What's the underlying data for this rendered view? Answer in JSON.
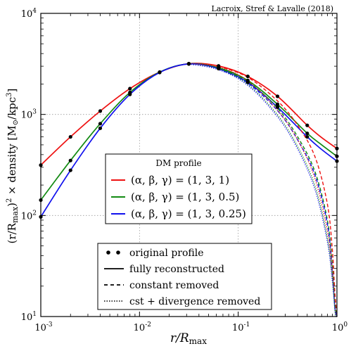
{
  "chart_data": {
    "type": "line",
    "annotation": "Lacroix, Stref & Lavalle (2018)",
    "xlabel": "r/R_max",
    "ylabel": "(r/R_max)² × density [M⊙/kpc³]",
    "xscale": "log",
    "yscale": "log",
    "xlim": [
      0.001,
      1
    ],
    "ylim": [
      10,
      10000
    ],
    "grid": true,
    "x_ticks": [
      {
        "value": 0.001,
        "label": "10",
        "exp": "-3"
      },
      {
        "value": 0.01,
        "label": "10",
        "exp": "-2"
      },
      {
        "value": 0.1,
        "label": "10",
        "exp": "-1"
      },
      {
        "value": 1,
        "label": "10",
        "exp": "0"
      }
    ],
    "y_ticks": [
      {
        "value": 10,
        "label": "10",
        "exp": "1"
      },
      {
        "value": 100,
        "label": "10",
        "exp": "2"
      },
      {
        "value": 1000,
        "label": "10",
        "exp": "3"
      },
      {
        "value": 10000,
        "label": "10",
        "exp": "4"
      }
    ],
    "colors": {
      "red": "#ee1111",
      "green": "#128a12",
      "blue": "#1111ee"
    },
    "profile_legend": {
      "title": "DM profile",
      "entries": [
        {
          "label": "(α, β, γ) = (1, 3, 1)",
          "color": "#ee1111"
        },
        {
          "label": "(α, β, γ) = (1, 3, 0.5)",
          "color": "#128a12"
        },
        {
          "label": "(α, β, γ) = (1, 3, 0.25)",
          "color": "#1111ee"
        }
      ]
    },
    "style_legend": [
      {
        "label": "original profile",
        "style": "dots"
      },
      {
        "label": "fully reconstructed",
        "style": "solid"
      },
      {
        "label": "constant removed",
        "style": "dashed"
      },
      {
        "label": "cst + divergence removed",
        "style": "dotted"
      }
    ],
    "series": [
      {
        "color": "#ee1111",
        "style": "solid",
        "x": [
          0.001,
          0.002,
          0.004,
          0.008,
          0.016,
          0.0316,
          0.0632,
          0.125,
          0.25,
          0.5,
          0.7,
          1.0
        ],
        "y": [
          315,
          600,
          1080,
          1800,
          2620,
          3180,
          3020,
          2380,
          1510,
          780,
          590,
          460
        ]
      },
      {
        "color": "#128a12",
        "style": "solid",
        "x": [
          0.001,
          0.002,
          0.004,
          0.008,
          0.016,
          0.0316,
          0.0632,
          0.125,
          0.25,
          0.5,
          0.7,
          1.0
        ],
        "y": [
          142,
          350,
          810,
          1650,
          2620,
          3170,
          2900,
          2170,
          1260,
          650,
          500,
          385
        ]
      },
      {
        "color": "#1111ee",
        "style": "solid",
        "x": [
          0.001,
          0.002,
          0.004,
          0.008,
          0.016,
          0.0316,
          0.0632,
          0.125,
          0.25,
          0.5,
          0.7,
          1.0
        ],
        "y": [
          97,
          280,
          730,
          1580,
          2600,
          3160,
          2840,
          2080,
          1180,
          600,
          450,
          345
        ]
      },
      {
        "color": "#ee1111",
        "style": "dashed",
        "x": [
          0.0632,
          0.125,
          0.25,
          0.4,
          0.6,
          0.8,
          0.9,
          0.95,
          1.0
        ],
        "y": [
          3010,
          2330,
          1360,
          780,
          380,
          130,
          45,
          18,
          10
        ]
      },
      {
        "color": "#128a12",
        "style": "dashed",
        "x": [
          0.0632,
          0.125,
          0.25,
          0.4,
          0.6,
          0.8,
          0.9,
          0.95,
          1.0
        ],
        "y": [
          2890,
          2120,
          1150,
          600,
          270,
          90,
          32,
          14,
          10
        ]
      },
      {
        "color": "#1111ee",
        "style": "dashed",
        "x": [
          0.0632,
          0.125,
          0.25,
          0.4,
          0.6,
          0.8,
          0.9,
          0.95,
          1.0
        ],
        "y": [
          2830,
          2040,
          1090,
          560,
          250,
          82,
          28,
          13,
          10
        ]
      },
      {
        "color": "#ee1111",
        "style": "dotted",
        "x": [
          0.0316,
          0.0632,
          0.125,
          0.25,
          0.4,
          0.6,
          0.8,
          0.9,
          0.96,
          1.0
        ],
        "y": [
          3170,
          2950,
          2150,
          1100,
          560,
          230,
          70,
          28,
          12,
          10
        ]
      },
      {
        "color": "#128a12",
        "style": "dotted",
        "x": [
          0.0316,
          0.0632,
          0.125,
          0.25,
          0.4,
          0.6,
          0.8,
          0.9,
          0.96,
          1.0
        ],
        "y": [
          3160,
          2830,
          1990,
          990,
          480,
          195,
          60,
          24,
          11,
          10
        ]
      },
      {
        "color": "#1111ee",
        "style": "dotted",
        "x": [
          0.0316,
          0.0632,
          0.125,
          0.25,
          0.4,
          0.6,
          0.8,
          0.9,
          0.96,
          1.0
        ],
        "y": [
          3150,
          2770,
          1940,
          950,
          455,
          180,
          55,
          22,
          11,
          10
        ]
      }
    ],
    "points": [
      {
        "color": "#ee1111",
        "x": [
          0.001,
          0.002,
          0.004,
          0.008,
          0.016,
          0.0316,
          0.0632,
          0.125,
          0.25,
          0.5,
          1.0
        ],
        "y": [
          315,
          600,
          1080,
          1800,
          2620,
          3180,
          3020,
          2380,
          1510,
          780,
          460
        ]
      },
      {
        "color": "#128a12",
        "x": [
          0.001,
          0.002,
          0.004,
          0.008,
          0.016,
          0.0316,
          0.0632,
          0.125,
          0.25,
          0.5,
          1.0
        ],
        "y": [
          142,
          350,
          810,
          1650,
          2620,
          3170,
          2900,
          2170,
          1260,
          650,
          385
        ]
      },
      {
        "color": "#1111ee",
        "x": [
          0.001,
          0.002,
          0.004,
          0.008,
          0.016,
          0.0316,
          0.0632,
          0.125,
          0.25,
          0.5,
          1.0
        ],
        "y": [
          97,
          280,
          730,
          1580,
          2600,
          3160,
          2840,
          2080,
          1180,
          600,
          345
        ]
      }
    ]
  }
}
